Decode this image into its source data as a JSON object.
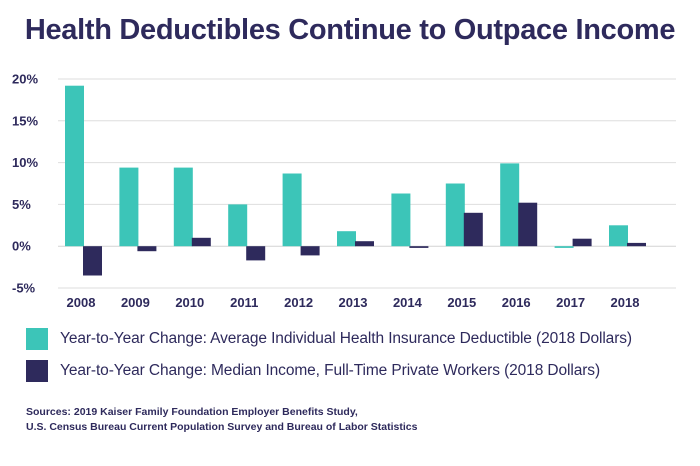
{
  "chart_data": {
    "type": "bar",
    "title": "Health Deductibles Continue to Outpace Income",
    "categories": [
      "2008",
      "2009",
      "2010",
      "2011",
      "2012",
      "2013",
      "2014",
      "2015",
      "2016",
      "2017",
      "2018"
    ],
    "series": [
      {
        "name": "Year-to-Year Change: Average Individual Health Insurance Deductible (2018 Dollars)",
        "color": "#3cc5b8",
        "values": [
          19.2,
          9.4,
          9.4,
          5.0,
          8.7,
          1.8,
          6.3,
          7.5,
          9.9,
          -0.2,
          2.5
        ]
      },
      {
        "name": "Year-to-Year Change: Median Income, Full-Time Private Workers (2018 Dollars)",
        "color": "#2e2a5c",
        "values": [
          -3.5,
          -0.6,
          1.0,
          -1.7,
          -1.1,
          0.6,
          -0.2,
          4.0,
          5.2,
          0.9,
          0.4
        ]
      }
    ],
    "yticks": [
      "20%",
      "15%",
      "10%",
      "5%",
      "0%",
      "-5%"
    ],
    "ytick_values": [
      20,
      15,
      10,
      5,
      0,
      -5
    ],
    "ylim": [
      -5,
      20
    ],
    "grid": true,
    "legend_position": "bottom-left"
  },
  "sources": {
    "line1": "Sources: 2019 Kaiser Family Foundation Employer Benefits Study,",
    "line2": "U.S. Census Bureau Current Population Survey and Bureau of Labor Statistics"
  }
}
